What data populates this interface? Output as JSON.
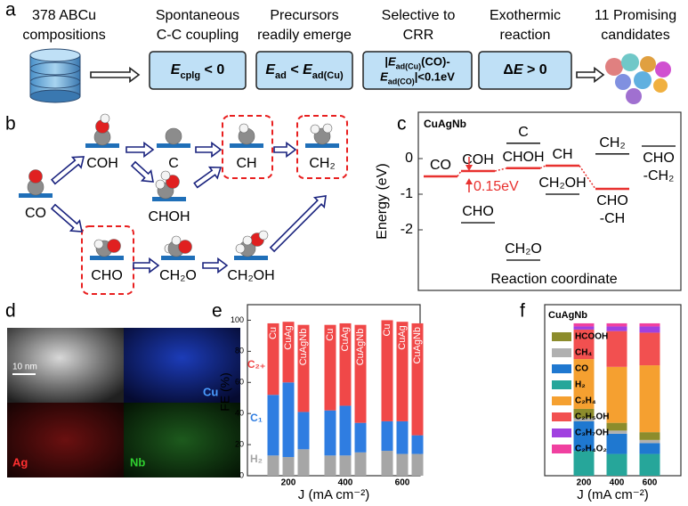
{
  "panel_a": {
    "label": "a",
    "steps": [
      {
        "caption": [
          "378 ABCu",
          "compositions"
        ]
      },
      {
        "caption": [
          "Spontaneous",
          "C-C coupling"
        ],
        "box": [
          [
            {
              "text": "E",
              "style": "italic"
            },
            {
              "text": "cplg",
              "style": "sub"
            },
            {
              "text": " < 0"
            }
          ]
        ]
      },
      {
        "caption": [
          "Precursors",
          "readily emerge"
        ],
        "box": [
          [
            {
              "text": "E",
              "style": "italic"
            },
            {
              "text": "ad",
              "style": "sub"
            },
            {
              "text": " < "
            },
            {
              "text": "E",
              "style": "italic"
            },
            {
              "text": "ad(Cu)",
              "style": "sub"
            }
          ]
        ]
      },
      {
        "caption": [
          "Selective to",
          "CRR"
        ],
        "box": [
          [
            {
              "text": "|"
            },
            {
              "text": "E",
              "style": "italic"
            },
            {
              "text": "ad(Cu)",
              "style": "sub"
            },
            {
              "text": "(CO)-"
            }
          ],
          [
            {
              "text": "E",
              "style": "italic"
            },
            {
              "text": "ad(CO)",
              "style": "sub"
            },
            {
              "text": "|<0.1eV"
            }
          ]
        ]
      },
      {
        "caption": [
          "Exothermic",
          "reaction"
        ],
        "box": [
          [
            {
              "text": "Δ"
            },
            {
              "text": "E",
              "style": "italic"
            },
            {
              "text": " > 0"
            }
          ]
        ]
      },
      {
        "caption": [
          "11 Promising",
          "candidates"
        ]
      }
    ]
  },
  "panel_b": {
    "label": "b",
    "nodes": [
      {
        "label": "CO"
      },
      {
        "label": "COH"
      },
      {
        "label": "C"
      },
      {
        "label": "CH"
      },
      {
        "label": "CH₂"
      },
      {
        "label": "CHOH"
      },
      {
        "label": "CHO"
      },
      {
        "label": "CH₂O"
      },
      {
        "label": "CH₂OH"
      }
    ]
  },
  "panel_d": {
    "label": "d",
    "scale_bar": "10 nm",
    "maps": [
      "Cu",
      "Ag",
      "Nb"
    ]
  },
  "chart_data": [
    {
      "type": "energy_levels",
      "label": "c",
      "title": "CuAgNb",
      "y_label": "Energy (eV)",
      "x_label": "Reaction coordinate",
      "ylim": [
        -3.7,
        1.3
      ],
      "yticks": [
        0,
        -1,
        -2
      ],
      "annotation": "0.15eV",
      "series": [
        {
          "color": "#e8312f",
          "labels": [
            [
              "CO"
            ],
            [
              "COH"
            ],
            [
              "CHOH"
            ],
            [
              "CH"
            ],
            [
              "CHO",
              "-CH"
            ],
            null
          ],
          "values": [
            -0.5,
            -0.35,
            -0.27,
            -0.2,
            -0.85,
            null
          ]
        },
        {
          "color": "#000000",
          "labels": [
            null,
            [
              "CHO"
            ],
            [
              "C"
            ],
            [
              "CH₂OH"
            ],
            [
              "CH₂"
            ],
            [
              "CHO",
              "-CH₂"
            ]
          ],
          "values": [
            null,
            -1.8,
            0.43,
            -1.0,
            0.13,
            0.35
          ]
        },
        {
          "color": "#000000",
          "labels": [
            null,
            null,
            [
              "CH₂O"
            ],
            null,
            null,
            null
          ],
          "values": [
            null,
            null,
            -2.85,
            null,
            null,
            null
          ]
        }
      ]
    },
    {
      "type": "grouped_stacked_bar",
      "label": "e",
      "y_label": "FE (%)",
      "x_label": "J (mA cm⁻²)",
      "categories": [
        "200",
        "400",
        "600"
      ],
      "bar_labels": [
        "Cu",
        "CuAg",
        "CuAgNb"
      ],
      "ylim": [
        0,
        110
      ],
      "yticks": [
        0,
        20,
        40,
        60,
        80,
        100
      ],
      "series": [
        {
          "name": "H₂",
          "color": "#a6a6a6",
          "values": [
            [
              13,
              12,
              17
            ],
            [
              13,
              13,
              15
            ],
            [
              16,
              14,
              14
            ]
          ]
        },
        {
          "name": "C₁",
          "color": "#2f7de1",
          "values": [
            [
              39,
              48,
              24
            ],
            [
              29,
              32,
              19
            ],
            [
              19,
              21,
              12
            ]
          ]
        },
        {
          "name": "C₂₊",
          "color": "#f04848",
          "values": [
            [
              46,
              39,
              56
            ],
            [
              55,
              53,
              63
            ],
            [
              65,
              64,
              72
            ]
          ]
        }
      ]
    },
    {
      "type": "stacked_bar",
      "label": "f",
      "title": "CuAgNb",
      "x_label": "J (mA cm⁻²)",
      "categories": [
        "200",
        "400",
        "600"
      ],
      "ylim": [
        0,
        110
      ],
      "series": [
        {
          "name": "HCOOH",
          "color": "#8c8c2c",
          "values": [
            6,
            5,
            5
          ]
        },
        {
          "name": "CH₄",
          "color": "#b0b0b0",
          "values": [
            2,
            2,
            2
          ]
        },
        {
          "name": "CO",
          "color": "#1f78d0",
          "values": [
            19,
            13,
            7
          ]
        },
        {
          "name": "H₂",
          "color": "#26a69a",
          "values": [
            16,
            14,
            14
          ]
        },
        {
          "name": "C₂H₄",
          "color": "#f5a030",
          "values": [
            32,
            36,
            43
          ]
        },
        {
          "name": "C₂H₅OH",
          "color": "#f25050",
          "values": [
            19,
            23,
            21
          ]
        },
        {
          "name": "C₃H₇OH",
          "color": "#a040e0",
          "values": [
            2,
            3,
            4
          ]
        },
        {
          "name": "C₂H₄O₂",
          "color": "#f040a0",
          "values": [
            2,
            2,
            2
          ]
        }
      ]
    }
  ]
}
